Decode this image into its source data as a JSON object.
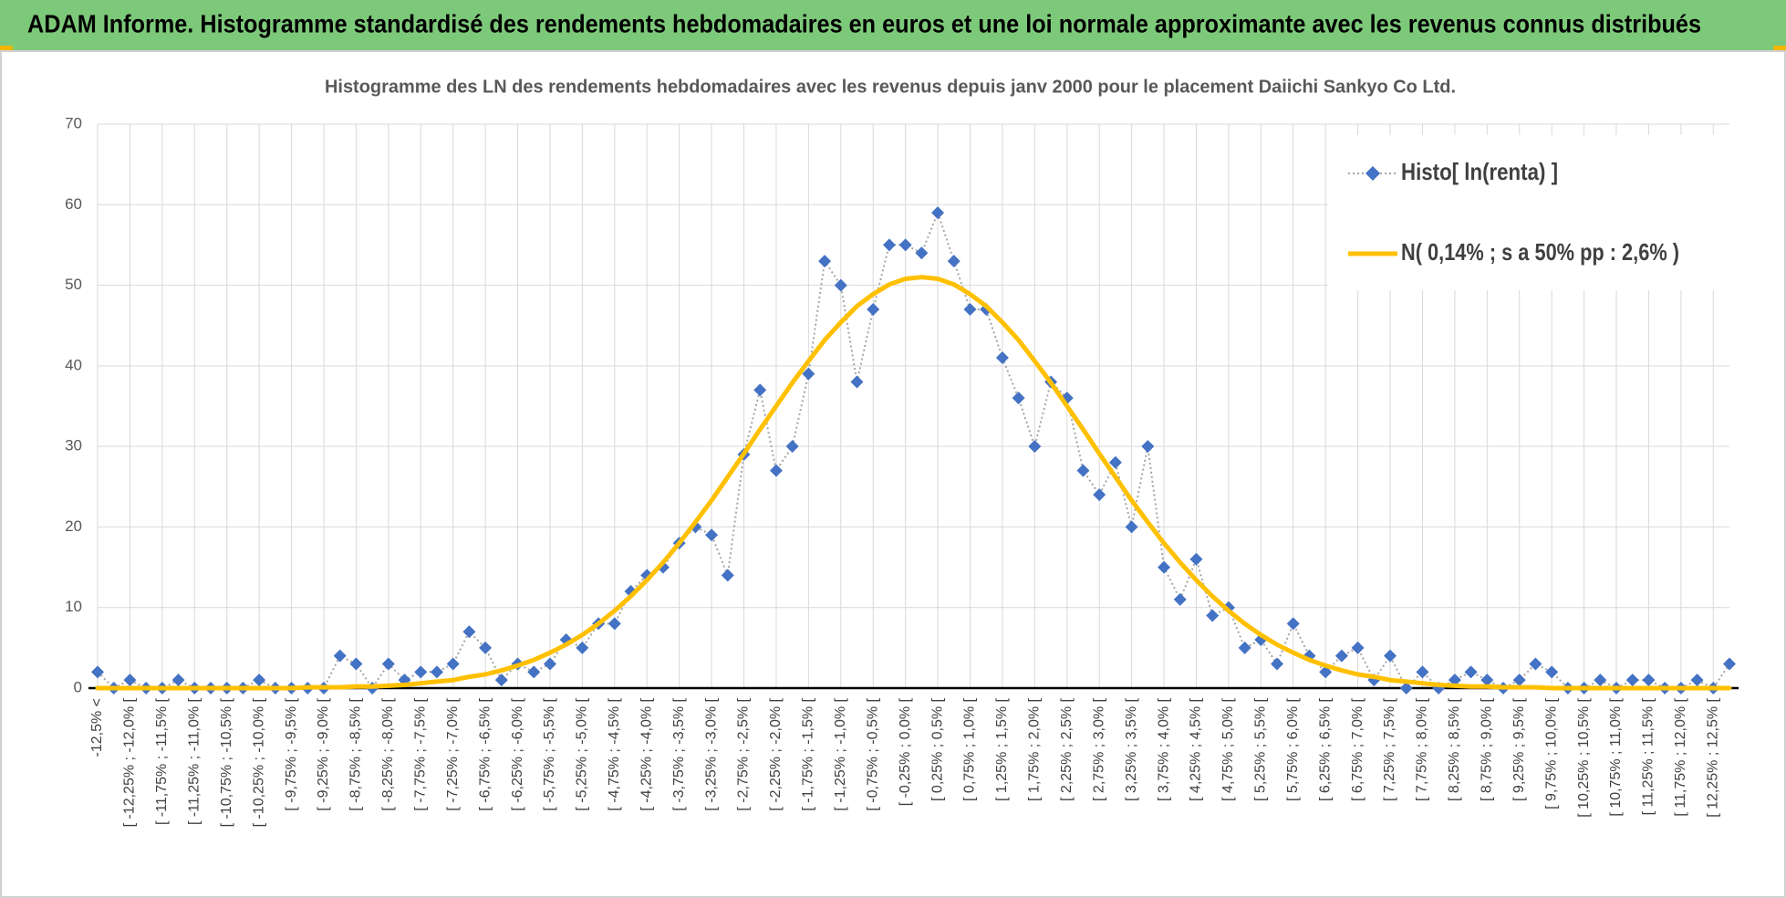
{
  "header": {
    "title": "ADAM Informe. Histogramme standardisé des rendements hebdomadaires en euros et une loi normale approximante avec les revenus connus distribués"
  },
  "chart_data": {
    "type": "line",
    "title": "Histogramme des LN des rendements hebdomadaires avec les revenus depuis janv 2000 pour le placement Daiichi Sankyo Co Ltd.",
    "categories": [
      "-12,5% <",
      null,
      "[ -12,25% ; -12,0% [",
      null,
      "[ -11,75% ; -11,5% [",
      null,
      "[ -11,25% ; -11,0% [",
      null,
      "[ -10,75% ; -10,5% [",
      null,
      "[ -10,25% ; -10,0% [",
      null,
      "[ -9,75% ; -9,5% [",
      null,
      "[ -9,25% ; -9,0% [",
      null,
      "[ -8,75% ; -8,5% [",
      null,
      "[ -8,25% ; -8,0% [",
      null,
      "[ -7,75% ; -7,5% [",
      null,
      "[ -7,25% ; -7,0% [",
      null,
      "[ -6,75% ; -6,5% [",
      null,
      "[ -6,25% ; -6,0% [",
      null,
      "[ -5,75% ; -5,5% [",
      null,
      "[ -5,25% ; -5,0% [",
      null,
      "[ -4,75% ; -4,5% [",
      null,
      "[ -4,25% ; -4,0% [",
      null,
      "[ -3,75% ; -3,5% [",
      null,
      "[ -3,25% ; -3,0% [",
      null,
      "[ -2,75% ; -2,5% [",
      null,
      "[ -2,25% ; -2,0% [",
      null,
      "[ -1,75% ; -1,5% [",
      null,
      "[ -1,25% ; -1,0% [",
      null,
      "[ -0,75% ; -0,5% [",
      null,
      "[ -0,25% ; 0,0% [",
      null,
      "[ 0,25% ; 0,5% [",
      null,
      "[ 0,75% ; 1,0% [",
      null,
      "[ 1,25% ; 1,5% [",
      null,
      "[ 1,75% ; 2,0% [",
      null,
      "[ 2,25% ; 2,5% [",
      null,
      "[ 2,75% ; 3,0% [",
      null,
      "[ 3,25% ; 3,5% [",
      null,
      "[ 3,75% ; 4,0% [",
      null,
      "[ 4,25% ; 4,5% [",
      null,
      "[ 4,75% ; 5,0% [",
      null,
      "[ 5,25% ; 5,5% [",
      null,
      "[ 5,75% ; 6,0% [",
      null,
      "[ 6,25% ; 6,5% [",
      null,
      "[ 6,75% ; 7,0% [",
      null,
      "[ 7,25% ; 7,5% [",
      null,
      "[ 7,75% ; 8,0% [",
      null,
      "[ 8,25% ; 8,5% [",
      null,
      "[ 8,75% ; 9,0% [",
      null,
      "[ 9,25% ; 9,5% [",
      null,
      "[ 9,75% ; 10,0% [",
      null,
      "[ 10,25% ; 10,5% [",
      null,
      "[ 10,75% ; 11,0% [",
      null,
      "[ 11,25% ; 11,5% [",
      null,
      "[ 11,75% ; 12,0% [",
      null,
      "[ 12,25% ; 12,5% [",
      null
    ],
    "series": [
      {
        "name": "Histo[ ln(renta) ]",
        "color": "#4472c4",
        "line_color": "#a5a5a5",
        "marker": "diamond",
        "values": [
          2,
          0,
          1,
          0,
          0,
          1,
          0,
          0,
          0,
          0,
          1,
          0,
          0,
          0,
          0,
          4,
          3,
          0,
          3,
          1,
          2,
          2,
          3,
          7,
          5,
          1,
          3,
          2,
          3,
          6,
          5,
          8,
          8,
          12,
          14,
          15,
          18,
          20,
          19,
          14,
          29,
          37,
          27,
          30,
          39,
          53,
          50,
          38,
          47,
          55,
          55,
          54,
          59,
          53,
          47,
          47,
          41,
          36,
          30,
          38,
          36,
          27,
          24,
          28,
          20,
          30,
          15,
          11,
          16,
          9,
          10,
          5,
          6,
          3,
          8,
          4,
          2,
          4,
          5,
          1,
          4,
          0,
          2,
          0,
          1,
          2,
          1,
          0,
          1,
          3,
          2,
          0,
          0,
          1,
          0,
          1,
          1,
          0,
          0,
          1,
          0,
          3
        ]
      },
      {
        "name": "N( 0,14% ; s a 50% pp : 2,6% )",
        "color": "#ffc000",
        "values": [
          0,
          0,
          0,
          0,
          0,
          0,
          0,
          0,
          0,
          0,
          0,
          0,
          0,
          0.1,
          0.1,
          0.1,
          0.2,
          0.2,
          0.3,
          0.4,
          0.6,
          0.8,
          1,
          1.4,
          1.7,
          2.2,
          2.8,
          3.5,
          4.4,
          5.4,
          6.6,
          8,
          9.6,
          11.4,
          13.4,
          15.6,
          18,
          20.6,
          23.3,
          26.2,
          29.1,
          32.1,
          35,
          37.9,
          40.6,
          43.2,
          45.4,
          47.4,
          48.9,
          50.1,
          50.8,
          51,
          50.8,
          50.1,
          48.9,
          47.4,
          45.4,
          43.2,
          40.6,
          37.9,
          35,
          32.1,
          29.1,
          26.2,
          23.3,
          20.6,
          18,
          15.6,
          13.4,
          11.4,
          9.6,
          8,
          6.6,
          5.4,
          4.4,
          3.5,
          2.8,
          2.2,
          1.7,
          1.4,
          1,
          0.8,
          0.6,
          0.4,
          0.3,
          0.2,
          0.2,
          0.1,
          0.1,
          0.1,
          0,
          0,
          0,
          0,
          0,
          0,
          0,
          0,
          0,
          0,
          0,
          0
        ]
      }
    ],
    "ylim": [
      0,
      70
    ],
    "yticks": [
      0,
      10,
      20,
      30,
      40,
      50,
      60,
      70
    ],
    "grid": true,
    "legend": "top-right"
  }
}
